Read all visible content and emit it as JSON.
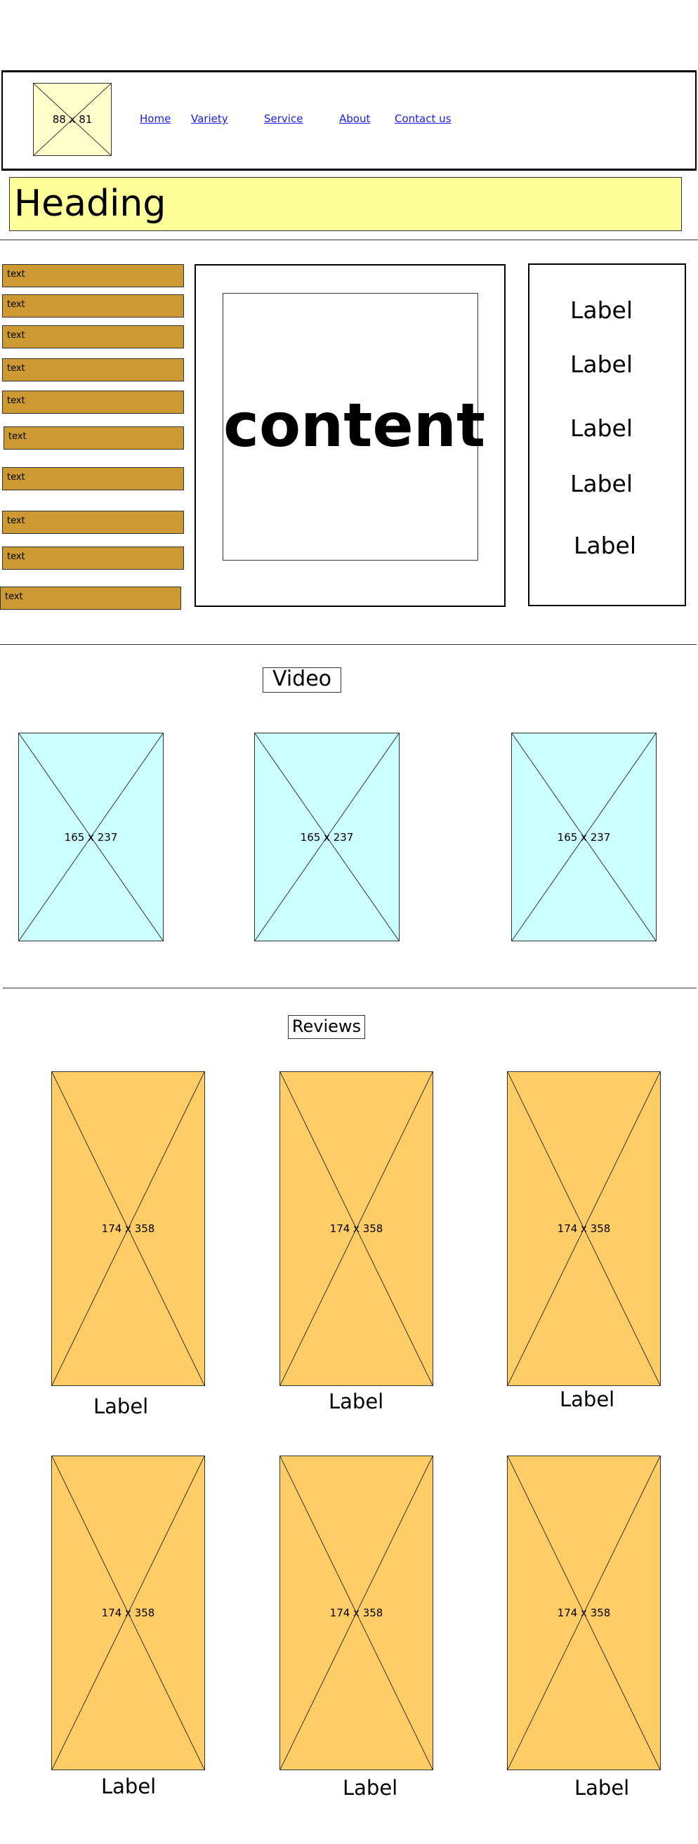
{
  "logo": {
    "placeholder_label": "88 x 81",
    "color": "#ffffcc"
  },
  "nav": {
    "links": [
      {
        "label": "Home"
      },
      {
        "label": "Variety"
      },
      {
        "label": "Service"
      },
      {
        "label": "About"
      },
      {
        "label": "Contact us"
      }
    ]
  },
  "heading": {
    "text": "Heading",
    "color": "#ffff99"
  },
  "sidebar": {
    "color": "#cc9933",
    "items": [
      {
        "label": "text"
      },
      {
        "label": "text"
      },
      {
        "label": "text"
      },
      {
        "label": "text"
      },
      {
        "label": "text"
      },
      {
        "label": "text"
      },
      {
        "label": "text"
      },
      {
        "label": "text"
      },
      {
        "label": "text"
      },
      {
        "label": "text"
      }
    ]
  },
  "main": {
    "content_text": "content"
  },
  "label_panel": {
    "labels": [
      {
        "text": "Label"
      },
      {
        "text": "Label"
      },
      {
        "text": "Label"
      },
      {
        "text": "Label"
      },
      {
        "text": "Label"
      }
    ]
  },
  "video": {
    "title": "Video",
    "color": "#ccffff",
    "items": [
      {
        "placeholder_label": "165 x 237"
      },
      {
        "placeholder_label": "165 x 237"
      },
      {
        "placeholder_label": "165 x 237"
      }
    ]
  },
  "reviews": {
    "title": "Reviews",
    "color": "#ffcc66",
    "items": [
      {
        "placeholder_label": "174 x 358",
        "label": "Label"
      },
      {
        "placeholder_label": "174 x 358",
        "label": "Label"
      },
      {
        "placeholder_label": "174 x 358",
        "label": "Label"
      },
      {
        "placeholder_label": "174 x 358",
        "label": "Label"
      },
      {
        "placeholder_label": "174 x 358",
        "label": "Label"
      },
      {
        "placeholder_label": "174 x 358",
        "label": "Label"
      }
    ]
  }
}
